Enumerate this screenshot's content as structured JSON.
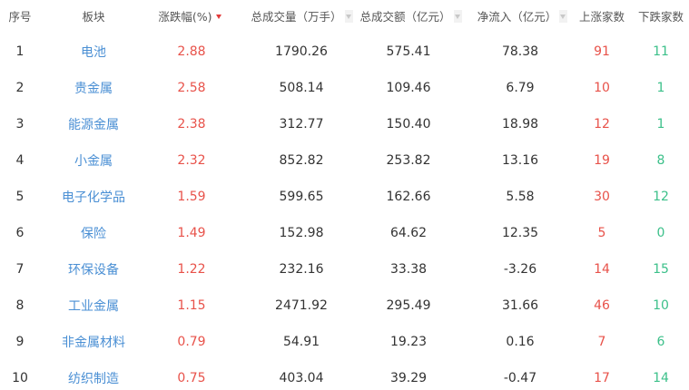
{
  "headers": {
    "rank": "序号",
    "sector": "板块",
    "change": "涨跌幅(%)",
    "volume": "总成交量（万手）",
    "amount": "总成交额（亿元）",
    "netflow": "净流入（亿元）",
    "up": "上涨家数",
    "down": "下跌家数"
  },
  "sort": {
    "active_column": "change",
    "direction": "desc"
  },
  "colors": {
    "up": "#e8524a",
    "down": "#3cc08a",
    "link": "#4a8fd4"
  },
  "rows": [
    {
      "rank": "1",
      "sector": "电池",
      "change": "2.88",
      "volume": "1790.26",
      "amount": "575.41",
      "netflow": "78.38",
      "up": "91",
      "down": "11"
    },
    {
      "rank": "2",
      "sector": "贵金属",
      "change": "2.58",
      "volume": "508.14",
      "amount": "109.46",
      "netflow": "6.79",
      "up": "10",
      "down": "1"
    },
    {
      "rank": "3",
      "sector": "能源金属",
      "change": "2.38",
      "volume": "312.77",
      "amount": "150.40",
      "netflow": "18.98",
      "up": "12",
      "down": "1"
    },
    {
      "rank": "4",
      "sector": "小金属",
      "change": "2.32",
      "volume": "852.82",
      "amount": "253.82",
      "netflow": "13.16",
      "up": "19",
      "down": "8"
    },
    {
      "rank": "5",
      "sector": "电子化学品",
      "change": "1.59",
      "volume": "599.65",
      "amount": "162.66",
      "netflow": "5.58",
      "up": "30",
      "down": "12"
    },
    {
      "rank": "6",
      "sector": "保险",
      "change": "1.49",
      "volume": "152.98",
      "amount": "64.62",
      "netflow": "12.35",
      "up": "5",
      "down": "0"
    },
    {
      "rank": "7",
      "sector": "环保设备",
      "change": "1.22",
      "volume": "232.16",
      "amount": "33.38",
      "netflow": "-3.26",
      "up": "14",
      "down": "15"
    },
    {
      "rank": "8",
      "sector": "工业金属",
      "change": "1.15",
      "volume": "2471.92",
      "amount": "295.49",
      "netflow": "31.66",
      "up": "46",
      "down": "10"
    },
    {
      "rank": "9",
      "sector": "非金属材料",
      "change": "0.79",
      "volume": "54.91",
      "amount": "19.23",
      "netflow": "0.16",
      "up": "7",
      "down": "6"
    },
    {
      "rank": "10",
      "sector": "纺织制造",
      "change": "0.75",
      "volume": "403.04",
      "amount": "39.29",
      "netflow": "-0.47",
      "up": "17",
      "down": "14"
    }
  ]
}
